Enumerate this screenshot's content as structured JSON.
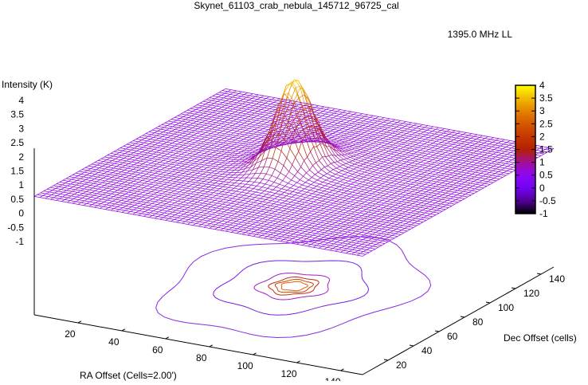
{
  "chart_data": {
    "type": "surface3d",
    "title": "Skynet_61103_crab_nebula_145712_96725_cal",
    "legend": {
      "label": "1395.0 MHz LL",
      "placement": "top-right"
    },
    "xlabel": "RA Offset (Cells=2.00')",
    "ylabel": "Dec Offset (cells)",
    "zlabel": "Intensity (K)",
    "xlim": [
      0,
      150
    ],
    "ylim": [
      0,
      150
    ],
    "zlim": [
      -1,
      4
    ],
    "xticks": [
      "20",
      "40",
      "60",
      "80",
      "100",
      "120",
      "140"
    ],
    "yticks": [
      "20",
      "40",
      "60",
      "80",
      "100",
      "120",
      "140"
    ],
    "zticks": [
      "4",
      "3.5",
      "3",
      "2.5",
      "2",
      "1.5",
      "1",
      "0.5",
      "0",
      "-0.5",
      "-1"
    ],
    "colorbar": {
      "range": [
        -1,
        4
      ],
      "ticks": [
        "4",
        "3.5",
        "3",
        "2.5",
        "2",
        "1.5",
        "1",
        "0.5",
        "0",
        "-0.5",
        "-1"
      ]
    },
    "source_peak": {
      "ra": 72,
      "dec": 80,
      "intensity": 4.0
    },
    "baseline": 0.6,
    "contours": true
  }
}
